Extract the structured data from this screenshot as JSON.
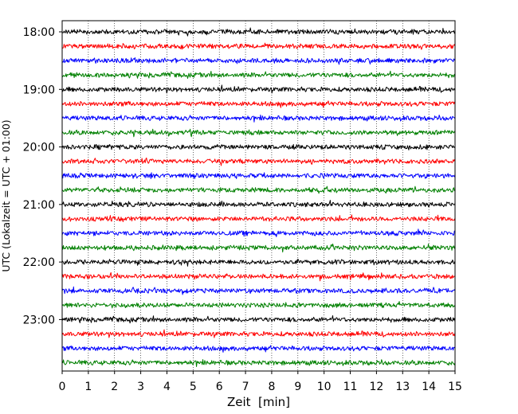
{
  "chart_data": {
    "type": "line",
    "subtype": "helicorder",
    "xlabel": "Zeit  [min]",
    "ylabel": "UTC (Lokalzeit = UTC + 01:00)",
    "xlim": [
      0,
      15
    ],
    "x_ticks": [
      0,
      1,
      2,
      3,
      4,
      5,
      6,
      7,
      8,
      9,
      10,
      11,
      12,
      13,
      14,
      15
    ],
    "x_grid": "dotted vertical lines at each minute",
    "y_tick_labels": [
      "18:00",
      "19:00",
      "20:00",
      "21:00",
      "22:00",
      "23:00"
    ],
    "y_tick_every_n_traces": 4,
    "trace_interval_min": 15,
    "trace_colors": [
      "#000000",
      "#ff0000",
      "#0000ff",
      "#008000"
    ],
    "traces": [
      {
        "start": "18:00",
        "color": "#000000"
      },
      {
        "start": "18:15",
        "color": "#ff0000"
      },
      {
        "start": "18:30",
        "color": "#0000ff"
      },
      {
        "start": "18:45",
        "color": "#008000"
      },
      {
        "start": "19:00",
        "color": "#000000"
      },
      {
        "start": "19:15",
        "color": "#ff0000"
      },
      {
        "start": "19:30",
        "color": "#0000ff"
      },
      {
        "start": "19:45",
        "color": "#008000"
      },
      {
        "start": "20:00",
        "color": "#000000"
      },
      {
        "start": "20:15",
        "color": "#ff0000"
      },
      {
        "start": "20:30",
        "color": "#0000ff"
      },
      {
        "start": "20:45",
        "color": "#008000"
      },
      {
        "start": "21:00",
        "color": "#000000"
      },
      {
        "start": "21:15",
        "color": "#ff0000"
      },
      {
        "start": "21:30",
        "color": "#0000ff"
      },
      {
        "start": "21:45",
        "color": "#008000"
      },
      {
        "start": "22:00",
        "color": "#000000"
      },
      {
        "start": "22:15",
        "color": "#ff0000"
      },
      {
        "start": "22:30",
        "color": "#0000ff"
      },
      {
        "start": "22:45",
        "color": "#008000"
      },
      {
        "start": "23:00",
        "color": "#000000"
      },
      {
        "start": "23:15",
        "color": "#ff0000"
      },
      {
        "start": "23:30",
        "color": "#0000ff"
      },
      {
        "start": "23:45",
        "color": "#008000"
      }
    ]
  }
}
